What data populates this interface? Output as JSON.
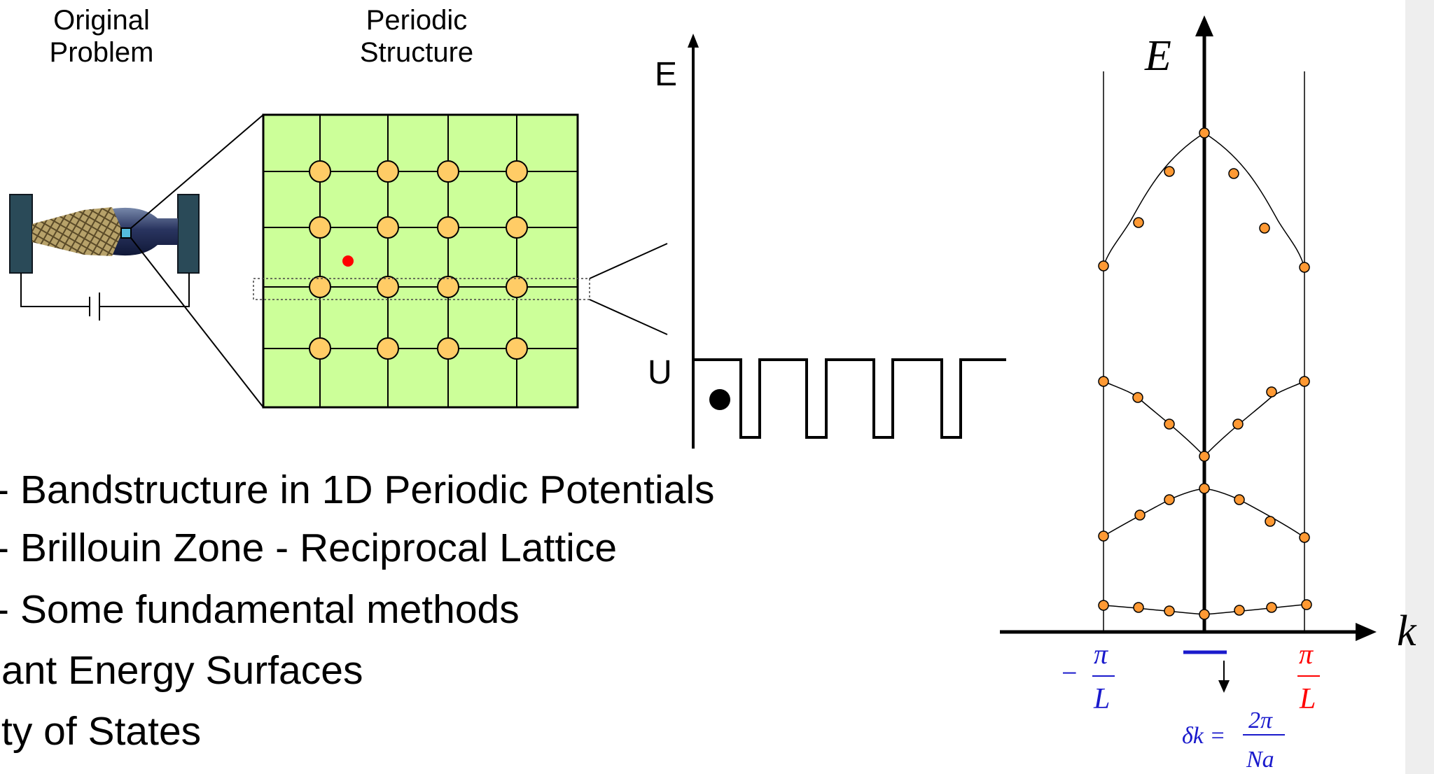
{
  "labels": {
    "original_problem_line1": "Original",
    "original_problem_line2": "Problem",
    "periodic_structure_line1": "Periodic",
    "periodic_structure_line2": "Structure"
  },
  "potential": {
    "energy_label": "E",
    "u_label": "U"
  },
  "bullets": [
    "- Bandstructure in 1D Periodic Potentials",
    "- Brillouin Zone - Reciprocal Lattice",
    "- Some fundamental methods",
    "ant Energy Surfaces",
    "ty of States"
  ],
  "band_plot": {
    "y_axis_label": "E",
    "x_axis_label": "k",
    "left_tick_num": "π",
    "left_tick_minus": "−",
    "left_tick_den": "L",
    "right_tick_num": "π",
    "right_tick_den": "L",
    "delta_prefix": "δk =",
    "delta_num": "2π",
    "delta_den": "Na"
  },
  "colors": {
    "lattice_fill": "#ccff99",
    "atom_fill": "#ffcc66",
    "band_point_fill": "#ff9933",
    "electron_red": "#ff0000",
    "left_tick_color": "#0000cc",
    "right_tick_color": "#ff0000",
    "electrode": "#2a4a58"
  }
}
